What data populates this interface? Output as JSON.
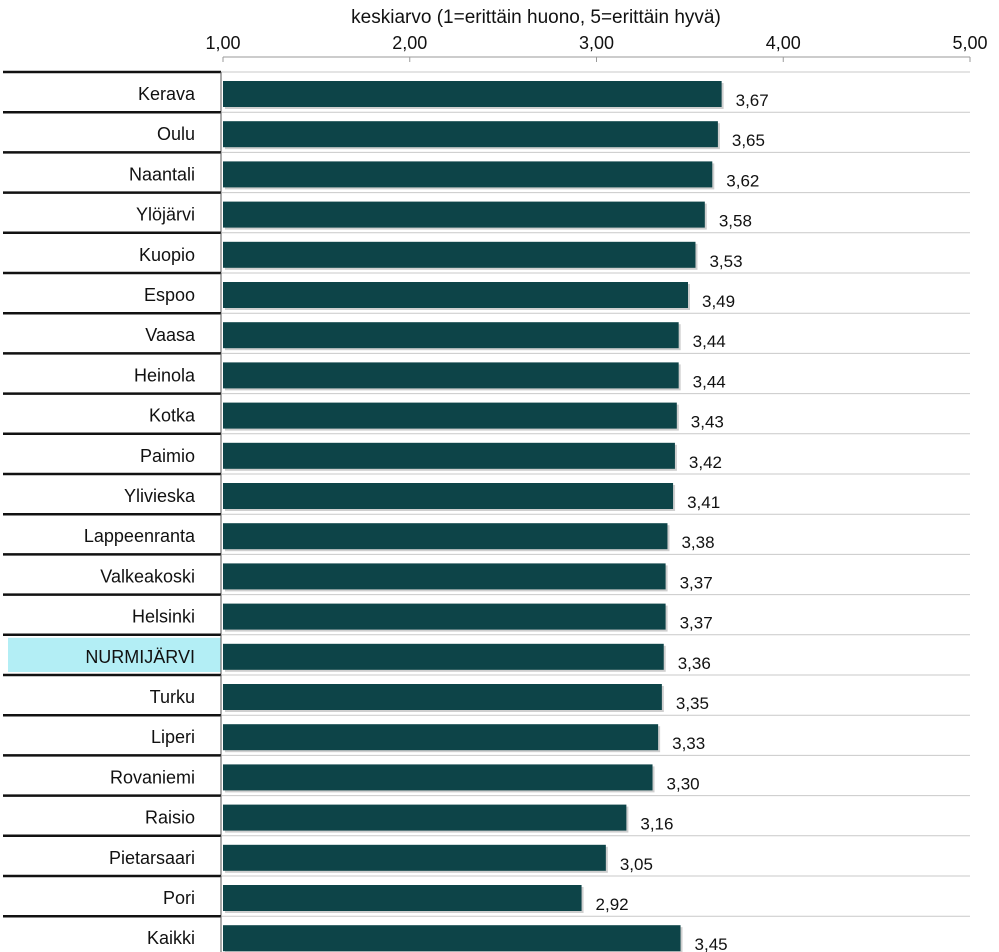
{
  "chart_data": {
    "type": "bar",
    "orientation": "horizontal",
    "title": "",
    "xlabel": "keskiarvo (1=erittäin huono, 5=erittäin hyvä)",
    "ylabel": "",
    "xlim": [
      1,
      5
    ],
    "xticks": [
      "1,00",
      "2,00",
      "3,00",
      "4,00",
      "5,00"
    ],
    "xtick_values": [
      1,
      2,
      3,
      4,
      5
    ],
    "categories": [
      "Kerava",
      "Oulu",
      "Naantali",
      "Ylöjärvi",
      "Kuopio",
      "Espoo",
      "Vaasa",
      "Heinola",
      "Kotka",
      "Paimio",
      "Ylivieska",
      "Lappeenranta",
      "Valkeakoski",
      "Helsinki",
      "NURMIJÄRVI",
      "Turku",
      "Liperi",
      "Rovaniemi",
      "Raisio",
      "Pietarsaari",
      "Pori",
      "Kaikki"
    ],
    "values": [
      3.67,
      3.65,
      3.62,
      3.58,
      3.53,
      3.49,
      3.44,
      3.44,
      3.43,
      3.42,
      3.41,
      3.38,
      3.37,
      3.37,
      3.36,
      3.35,
      3.33,
      3.3,
      3.16,
      3.05,
      2.92,
      3.45
    ],
    "value_labels": [
      "3,67",
      "3,65",
      "3,62",
      "3,58",
      "3,53",
      "3,49",
      "3,44",
      "3,44",
      "3,43",
      "3,42",
      "3,41",
      "3,38",
      "3,37",
      "3,37",
      "3,36",
      "3,35",
      "3,33",
      "3,30",
      "3,16",
      "3,05",
      "2,92",
      "3,45"
    ],
    "highlight_category": "NURMIJÄRVI",
    "bar_color": "#0d4448",
    "highlight_label_bg": "#b3eef5",
    "grid": false,
    "legend": "none"
  }
}
